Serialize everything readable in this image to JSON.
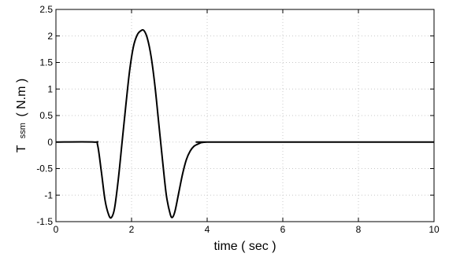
{
  "chart_data": {
    "type": "line",
    "title": "",
    "xlabel": "time ( sec )",
    "ylabel": "T ssm ( N.m )",
    "ylabel_main": "T",
    "ylabel_sub": "ssm",
    "ylabel_unit": "( N.m )",
    "xlim": [
      0,
      10
    ],
    "ylim": [
      -1.5,
      2.5
    ],
    "x_ticks": [
      "0",
      "2",
      "4",
      "6",
      "8",
      "10"
    ],
    "y_ticks": [
      "-1.5",
      "-1",
      "-0.5",
      "0",
      "0.5",
      "1",
      "1.5",
      "2",
      "2.5"
    ],
    "grid": true,
    "legend": "none",
    "series": [
      {
        "x": [
          0,
          1.0,
          1.1,
          1.2,
          1.3,
          1.4,
          1.47,
          1.55,
          1.65,
          1.75,
          1.85,
          1.95,
          2.05,
          2.15,
          2.25,
          2.33,
          2.42,
          2.52,
          2.62,
          2.72,
          2.82,
          2.92,
          3.02,
          3.08,
          3.15,
          3.25,
          3.35,
          3.45,
          3.55,
          3.65,
          3.75,
          3.85,
          4.0,
          4.2,
          10.0
        ],
        "y": [
          0,
          0,
          -0.05,
          -0.55,
          -1.1,
          -1.38,
          -1.42,
          -1.25,
          -0.7,
          0.0,
          0.7,
          1.35,
          1.8,
          2.02,
          2.1,
          2.1,
          1.95,
          1.6,
          1.05,
          0.35,
          -0.35,
          -1.0,
          -1.35,
          -1.42,
          -1.3,
          -0.95,
          -0.6,
          -0.33,
          -0.17,
          -0.08,
          -0.04,
          -0.01,
          0,
          0,
          0
        ]
      }
    ]
  }
}
